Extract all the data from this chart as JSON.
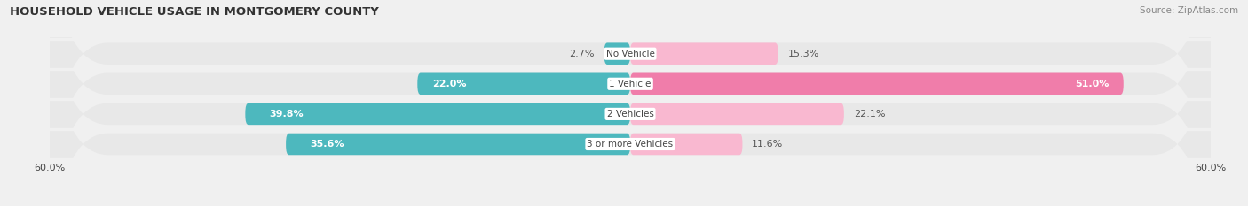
{
  "title": "HOUSEHOLD VEHICLE USAGE IN MONTGOMERY COUNTY",
  "source": "Source: ZipAtlas.com",
  "categories": [
    "No Vehicle",
    "1 Vehicle",
    "2 Vehicles",
    "3 or more Vehicles"
  ],
  "owner_values": [
    2.7,
    22.0,
    39.8,
    35.6
  ],
  "renter_values": [
    15.3,
    51.0,
    22.1,
    11.6
  ],
  "owner_color": "#4db8be",
  "renter_color": "#f07daa",
  "renter_color_light": "#f9b8d0",
  "axis_min": -60.0,
  "axis_max": 60.0,
  "bg_color": "#f0f0f0",
  "bar_bg_color": "#e2e2e2",
  "row_bg_color": "#e8e8e8",
  "title_fontsize": 9.5,
  "source_fontsize": 7.5,
  "label_fontsize": 8,
  "cat_fontsize": 7.5,
  "bar_height": 0.72
}
